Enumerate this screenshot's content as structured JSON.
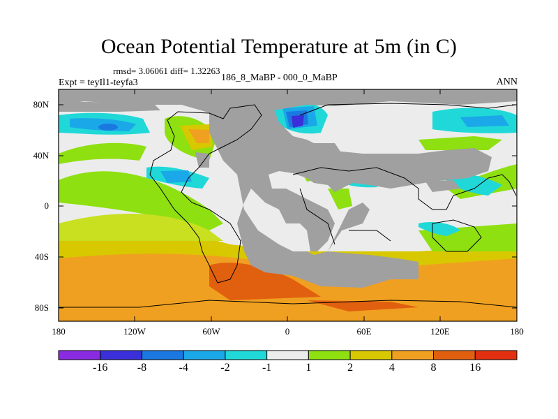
{
  "title": "Ocean Potential Temperature at 5m (in C)",
  "stats": "rmsd= 3.06061 diff= 1.32263",
  "experiment": "Expt = teyIl1-teyfa3",
  "period": "186_8_MaBP - 000_0_MaBP",
  "season": "ANN",
  "lat_labels": [
    "80N",
    "40N",
    "0",
    "40S",
    "80S"
  ],
  "lon_labels": [
    "180",
    "120W",
    "60W",
    "0",
    "60E",
    "120E",
    "180"
  ],
  "colorbar": {
    "labels": [
      "-16",
      "-8",
      "-4",
      "-2",
      "-1",
      "1",
      "2",
      "4",
      "8",
      "16"
    ],
    "colors": [
      "#8a2be2",
      "#3a2fd8",
      "#1a78e0",
      "#1aa8e8",
      "#20d8d8",
      "#ececec",
      "#8ee010",
      "#d8c800",
      "#f0a020",
      "#e06010",
      "#e03010"
    ]
  },
  "colors": {
    "land": "#a0a0a0",
    "ocean_neutral": "#ececec"
  }
}
